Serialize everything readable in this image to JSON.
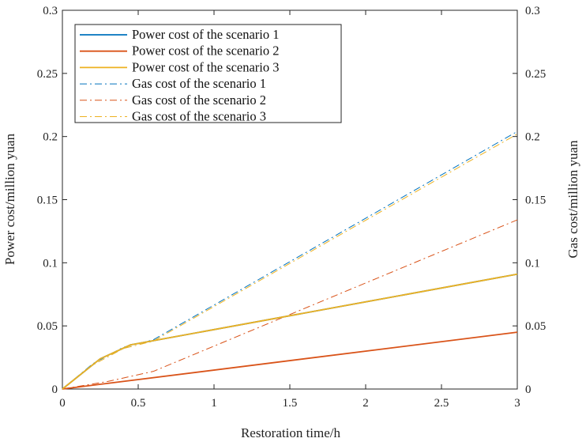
{
  "chart_data": {
    "type": "line",
    "xlabel": "Restoration time/h",
    "ylabel_left": "Power cost/million yuan",
    "ylabel_right": "Gas cost/million yuan",
    "xlim": [
      0,
      3
    ],
    "ylim_left": [
      0,
      0.3
    ],
    "ylim_right": [
      0,
      0.3
    ],
    "x_ticks": [
      0,
      0.5,
      1,
      1.5,
      2,
      2.5,
      3
    ],
    "x_tick_labels": [
      "0",
      "0.5",
      "1",
      "1.5",
      "2",
      "2.5",
      "3"
    ],
    "y_ticks": [
      0,
      0.05,
      0.1,
      0.15,
      0.2,
      0.25,
      0.3
    ],
    "y_tick_labels": [
      "0",
      "0.05",
      "0.1",
      "0.15",
      "0.2",
      "0.25",
      "0.3"
    ],
    "grid": false,
    "legend_position": "top-left",
    "series": [
      {
        "name": "Power cost of the scenario 1",
        "axis": "left",
        "style": "solid",
        "color": "#0072BD",
        "x": [
          0,
          0.25,
          0.45,
          3
        ],
        "y": [
          0,
          0.024,
          0.035,
          0.091
        ]
      },
      {
        "name": "Power cost of the scenario 2",
        "axis": "left",
        "style": "solid",
        "color": "#D95319",
        "x": [
          0,
          3
        ],
        "y": [
          0,
          0.045
        ]
      },
      {
        "name": "Power cost of the scenario 3",
        "axis": "left",
        "style": "solid",
        "color": "#EDB120",
        "x": [
          0,
          0.25,
          0.45,
          3
        ],
        "y": [
          0,
          0.024,
          0.035,
          0.091
        ]
      },
      {
        "name": "Gas cost of the scenario 1",
        "axis": "right",
        "style": "dashdot",
        "color": "#0072BD",
        "x": [
          0,
          0.2,
          0.4,
          0.6,
          3
        ],
        "y": [
          0,
          0.02,
          0.033,
          0.039,
          0.204
        ]
      },
      {
        "name": "Gas cost of the scenario 2",
        "axis": "right",
        "style": "dashdot",
        "color": "#D95319",
        "x": [
          0,
          0.3,
          0.6,
          3
        ],
        "y": [
          0,
          0.006,
          0.014,
          0.134
        ]
      },
      {
        "name": "Gas cost of the scenario 3",
        "axis": "right",
        "style": "dashdot",
        "color": "#EDB120",
        "x": [
          0,
          0.2,
          0.4,
          0.6,
          3
        ],
        "y": [
          0,
          0.019,
          0.032,
          0.038,
          0.202
        ]
      }
    ]
  }
}
